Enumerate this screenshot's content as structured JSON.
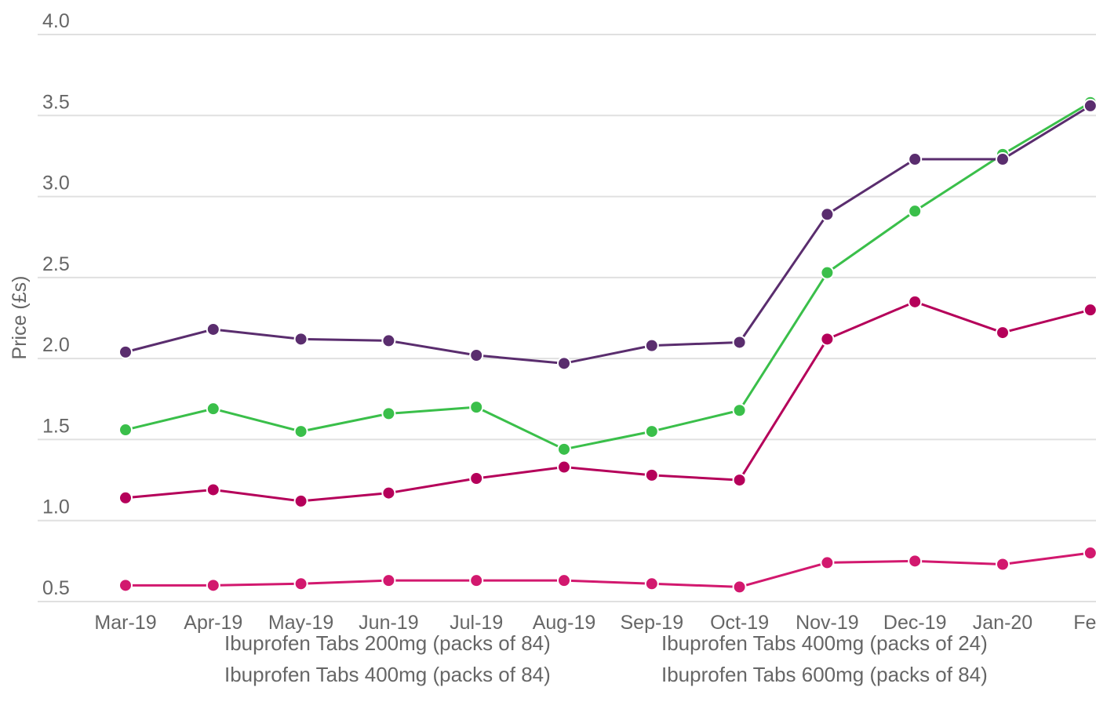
{
  "chart_data": {
    "type": "line",
    "categories": [
      "Mar-19",
      "Apr-19",
      "May-19",
      "Jun-19",
      "Jul-19",
      "Aug-19",
      "Sep-19",
      "Oct-19",
      "Nov-19",
      "Dec-19",
      "Jan-20",
      "Feb"
    ],
    "ylabel": "Price (£s)",
    "yticks": [
      "0.5",
      "1.0",
      "1.5",
      "2.0",
      "2.5",
      "3.0",
      "3.5",
      "4.0"
    ],
    "ylim": [
      0.5,
      4.0
    ],
    "grid": true,
    "legend_position": "bottom",
    "series": [
      {
        "name": "Ibuprofen Tabs 200mg (packs of 84)",
        "color": "#d2186e",
        "values": [
          0.6,
          0.6,
          0.61,
          0.63,
          0.63,
          0.63,
          0.61,
          0.59,
          0.74,
          0.75,
          0.73,
          0.8
        ]
      },
      {
        "name": "Ibuprofen Tabs 400mg (packs of 24)",
        "color": "#b5005a",
        "values": [
          1.14,
          1.19,
          1.12,
          1.17,
          1.26,
          1.33,
          1.28,
          1.25,
          2.12,
          2.35,
          2.16,
          2.3
        ]
      },
      {
        "name": "Ibuprofen Tabs 400mg (packs of 84)",
        "color": "#3abf4a",
        "values": [
          1.56,
          1.69,
          1.55,
          1.66,
          1.7,
          1.44,
          1.55,
          1.68,
          2.53,
          2.91,
          3.26,
          3.58
        ]
      },
      {
        "name": "Ibuprofen Tabs 600mg (packs of 84)",
        "color": "#5a2d6e",
        "values": [
          2.04,
          2.18,
          2.12,
          2.11,
          2.02,
          1.97,
          2.08,
          2.1,
          2.89,
          3.23,
          3.23,
          3.56
        ]
      }
    ]
  }
}
